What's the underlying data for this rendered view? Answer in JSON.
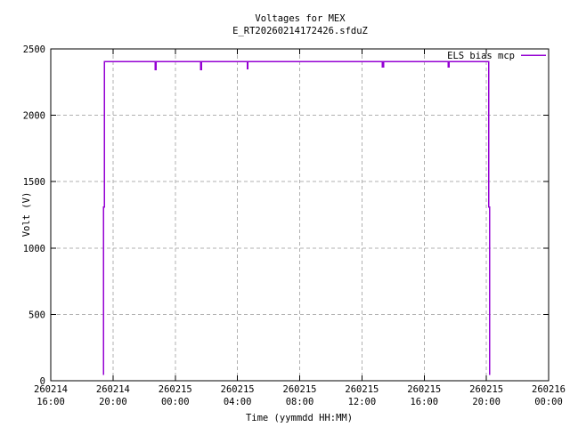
{
  "chart_data": {
    "type": "line",
    "title": "Voltages for MEX",
    "subtitle": "E_RT20260214172426.sfduZ",
    "xlabel": "Time (yymmdd HH:MM)",
    "ylabel": "Volt (V)",
    "x_range_hours": [
      0,
      32
    ],
    "ylim": [
      0,
      2500
    ],
    "y_ticks": [
      0,
      500,
      1000,
      1500,
      2000,
      2500
    ],
    "x_ticks": [
      {
        "hours": 0,
        "date": "260214",
        "time": "16:00"
      },
      {
        "hours": 4,
        "date": "260214",
        "time": "20:00"
      },
      {
        "hours": 8,
        "date": "260215",
        "time": "00:00"
      },
      {
        "hours": 12,
        "date": "260215",
        "time": "04:00"
      },
      {
        "hours": 16,
        "date": "260215",
        "time": "08:00"
      },
      {
        "hours": 20,
        "date": "260215",
        "time": "12:00"
      },
      {
        "hours": 24,
        "date": "260215",
        "time": "16:00"
      },
      {
        "hours": 28,
        "date": "260215",
        "time": "20:00"
      },
      {
        "hours": 32,
        "date": "260216",
        "time": "00:00"
      }
    ],
    "grid": true,
    "legend": {
      "position": "top-right-inside",
      "entries": [
        {
          "label": "ELS bias mcp",
          "color": "#9400d3"
        }
      ]
    },
    "series": [
      {
        "name": "ELS bias mcp",
        "color": "#9400d3",
        "points_hours_volts": [
          [
            3.4,
            45
          ],
          [
            3.4,
            1310
          ],
          [
            3.44,
            1310
          ],
          [
            3.44,
            2405
          ],
          [
            6.72,
            2405
          ],
          [
            6.72,
            2345
          ],
          [
            6.76,
            2345
          ],
          [
            6.76,
            2405
          ],
          [
            9.64,
            2405
          ],
          [
            9.64,
            2345
          ],
          [
            9.68,
            2345
          ],
          [
            9.68,
            2405
          ],
          [
            12.62,
            2405
          ],
          [
            12.62,
            2350
          ],
          [
            12.66,
            2350
          ],
          [
            12.66,
            2405
          ],
          [
            21.3,
            2405
          ],
          [
            21.3,
            2365
          ],
          [
            21.38,
            2365
          ],
          [
            21.38,
            2405
          ],
          [
            25.54,
            2405
          ],
          [
            25.54,
            2365
          ],
          [
            25.6,
            2365
          ],
          [
            25.6,
            2405
          ],
          [
            28.16,
            2405
          ],
          [
            28.16,
            1310
          ],
          [
            28.2,
            1310
          ],
          [
            28.2,
            45
          ]
        ]
      }
    ],
    "colors": {
      "grid": "#b0b0b0",
      "border": "#000000",
      "text": "#000000",
      "background": "#ffffff"
    }
  }
}
